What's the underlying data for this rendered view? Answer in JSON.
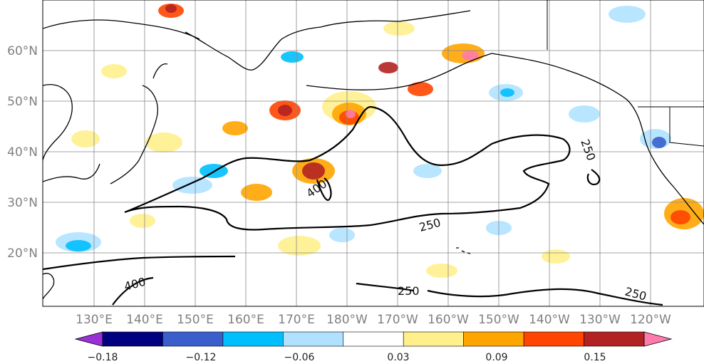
{
  "map": {
    "lon_ticks": [
      "130°E",
      "140°E",
      "150°E",
      "160°E",
      "170°E",
      "180°W",
      "170°W",
      "160°W",
      "150°W",
      "140°W",
      "130°W",
      "120°W"
    ],
    "lat_ticks": [
      "60°N",
      "50°N",
      "40°N",
      "30°N",
      "20°N"
    ],
    "contour_labels": [
      {
        "name": "contour-label-400-a",
        "text": "400"
      },
      {
        "name": "contour-label-400-b",
        "text": "400"
      },
      {
        "name": "contour-label-250-a",
        "text": "250"
      },
      {
        "name": "contour-label-250-b",
        "text": "250"
      },
      {
        "name": "contour-label-250-c",
        "text": "250"
      },
      {
        "name": "contour-label-250-d",
        "text": "250"
      }
    ]
  },
  "colorbar": {
    "tick_labels": [
      "−0.18",
      "−0.12",
      "−0.06",
      "0.03",
      "0.09",
      "0.15"
    ],
    "colors": [
      "#9b30d9",
      "#000080",
      "#3a5fcd",
      "#00bfff",
      "#b0e2ff",
      "#ffffff",
      "#fff08c",
      "#ffa500",
      "#ff4500",
      "#b22222",
      "#ff7bac"
    ]
  }
}
